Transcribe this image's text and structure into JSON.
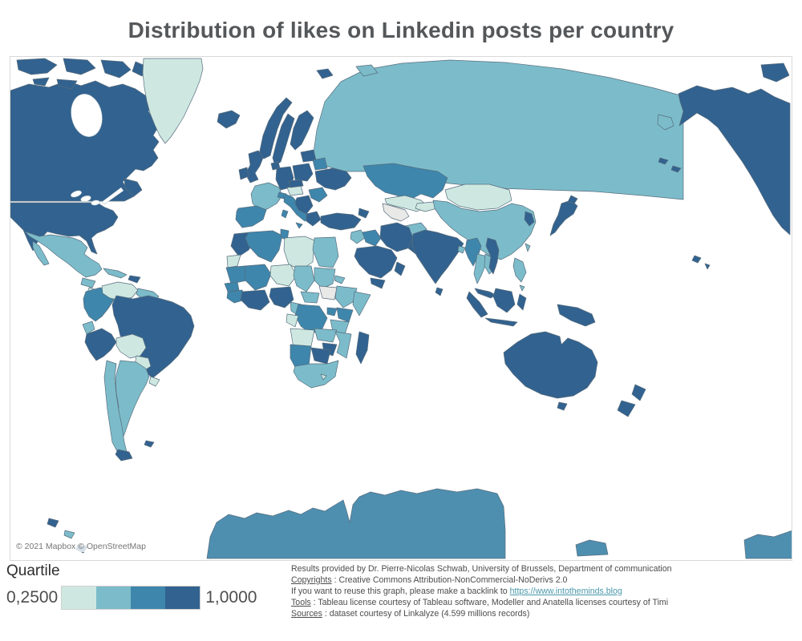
{
  "title": "Distribution of likes on Linkedin posts per country",
  "legend": {
    "title": "Quartile",
    "min_label": "0,2500",
    "max_label": "1,0000",
    "colors": [
      "#cee8e1",
      "#7cbcca",
      "#3e86ac",
      "#32628f"
    ]
  },
  "map": {
    "attribution": "© 2021 Mapbox © OpenStreetMap",
    "ocean_color": "#ffffff",
    "border_color": "#576d7e",
    "no_data_color": "#e9e9e7",
    "antarctica_color": "#4e8fb0"
  },
  "footer": {
    "line1": "Results provided by Dr. Pierre-Nicolas Schwab, University of Brussels, Department of communication",
    "line2_label": "Copyrights",
    "line2_text": " : Creative Commons Attribution-NonCommercial-NoDerivs 2.0",
    "line3_text": "If you want to reuse this graph, please make a backlink to ",
    "line3_link": "https://www.intotheminds.blog",
    "line4_label": "Tools",
    "line4_text": " : Tableau license courtesy of Tableau software, Modeller and Anatella licenses courtesy of Timi",
    "line5_label": "Sources",
    "line5_text": " : dataset courtesy of Linkalyze (4.599 millions records)"
  },
  "chart_data": {
    "type": "heatmap",
    "subtype": "choropleth-world-map",
    "title": "Distribution of likes on Linkedin posts per country",
    "legend_title": "Quartile",
    "scale": {
      "min": 0.25,
      "max": 1.0,
      "min_label": "0,2500",
      "max_label": "1,0000",
      "steps": 4
    },
    "countries": [
      {
        "id": "russia",
        "name": "Russia",
        "quartile": 2
      },
      {
        "id": "canada",
        "name": "Canada",
        "quartile": 4
      },
      {
        "id": "greenland",
        "name": "Greenland",
        "quartile": 1
      },
      {
        "id": "united-states",
        "name": "United States",
        "quartile": 4
      },
      {
        "id": "antarctica",
        "name": "Antarctica",
        "quartile": 3
      },
      {
        "id": "iceland",
        "name": "Iceland",
        "quartile": 4
      },
      {
        "id": "svalbard",
        "name": "Svalbard (Norway)",
        "quartile": 4
      },
      {
        "id": "mexico",
        "name": "Mexico",
        "quartile": 2
      },
      {
        "id": "guatemala-honduras",
        "name": "Guatemala & Honduras",
        "quartile": 2
      },
      {
        "id": "nicaragua",
        "name": "Nicaragua",
        "quartile": 1
      },
      {
        "id": "costa-rica-panama",
        "name": "Costa Rica & Panama",
        "quartile": 3
      },
      {
        "id": "cuba",
        "name": "Cuba",
        "quartile": 2
      },
      {
        "id": "hispaniola",
        "name": "Dominican Republic & Haiti",
        "quartile": 4
      },
      {
        "id": "colombia",
        "name": "Colombia",
        "quartile": 3
      },
      {
        "id": "venezuela",
        "name": "Venezuela",
        "quartile": 1
      },
      {
        "id": "guyanas",
        "name": "Guyana & Suriname",
        "quartile": 2
      },
      {
        "id": "ecuador",
        "name": "Ecuador",
        "quartile": 2
      },
      {
        "id": "peru",
        "name": "Peru",
        "quartile": 4
      },
      {
        "id": "brazil",
        "name": "Brazil",
        "quartile": 4
      },
      {
        "id": "bolivia",
        "name": "Bolivia",
        "quartile": 1
      },
      {
        "id": "paraguay",
        "name": "Paraguay",
        "quartile": 1
      },
      {
        "id": "uruguay",
        "name": "Uruguay",
        "quartile": 1
      },
      {
        "id": "argentina",
        "name": "Argentina",
        "quartile": 2
      },
      {
        "id": "chile",
        "name": "Chile",
        "quartile": 2
      },
      {
        "id": "tierra-del-fuego",
        "name": "Tierra del Fuego",
        "quartile": 4
      },
      {
        "id": "falklands",
        "name": "Falkland Islands",
        "quartile": 4
      },
      {
        "id": "south-georgia",
        "name": "South Georgia",
        "quartile": 4
      },
      {
        "id": "south-sandwich",
        "name": "South Sandwich Islands",
        "quartile": 2
      },
      {
        "id": "norway",
        "name": "Norway",
        "quartile": 4
      },
      {
        "id": "sweden",
        "name": "Sweden",
        "quartile": 4
      },
      {
        "id": "finland",
        "name": "Finland",
        "quartile": 4
      },
      {
        "id": "denmark",
        "name": "Denmark",
        "quartile": 4
      },
      {
        "id": "baltics",
        "name": "Baltic states",
        "quartile": 4
      },
      {
        "id": "uk",
        "name": "United Kingdom",
        "quartile": 4
      },
      {
        "id": "ireland",
        "name": "Ireland",
        "quartile": 4
      },
      {
        "id": "germany",
        "name": "Germany",
        "quartile": 4
      },
      {
        "id": "france",
        "name": "France",
        "quartile": 2
      },
      {
        "id": "spain",
        "name": "Spain & Portugal",
        "quartile": 3
      },
      {
        "id": "italy",
        "name": "Italy",
        "quartile": 3
      },
      {
        "id": "switzerland",
        "name": "Switzerland",
        "quartile": 3
      },
      {
        "id": "austria-hungary",
        "name": "Austria & Hungary",
        "quartile": 1
      },
      {
        "id": "czech-slovakia",
        "name": "Czechia & Slovakia",
        "quartile": 4
      },
      {
        "id": "poland",
        "name": "Poland",
        "quartile": 4
      },
      {
        "id": "belarus",
        "name": "Belarus",
        "quartile": 3
      },
      {
        "id": "ukraine",
        "name": "Ukraine",
        "quartile": 4
      },
      {
        "id": "romania",
        "name": "Romania",
        "quartile": 3
      },
      {
        "id": "balkans",
        "name": "Balkans",
        "quartile": 4
      },
      {
        "id": "greece",
        "name": "Greece",
        "quartile": 4
      },
      {
        "id": "kazakhstan",
        "name": "Kazakhstan",
        "quartile": 3
      },
      {
        "id": "uzbekistan",
        "name": "Uzbekistan",
        "quartile": 1
      },
      {
        "id": "turkmenistan",
        "name": "Turkmenistan",
        "quartile": "no data"
      },
      {
        "id": "kyrgyzstan",
        "name": "Kyrgyzstan & Tajikistan",
        "quartile": 1
      },
      {
        "id": "afghanistan",
        "name": "Afghanistan",
        "quartile": 2
      },
      {
        "id": "pakistan",
        "name": "Pakistan",
        "quartile": 4
      },
      {
        "id": "mongolia",
        "name": "Mongolia",
        "quartile": 1
      },
      {
        "id": "china",
        "name": "China",
        "quartile": 2
      },
      {
        "id": "india",
        "name": "India",
        "quartile": 4
      },
      {
        "id": "sri-lanka",
        "name": "Sri Lanka",
        "quartile": 4
      },
      {
        "id": "bangladesh",
        "name": "Bangladesh",
        "quartile": 2
      },
      {
        "id": "myanmar",
        "name": "Myanmar",
        "quartile": 3
      },
      {
        "id": "thailand",
        "name": "Thailand",
        "quartile": 2
      },
      {
        "id": "laos-cambodia",
        "name": "Laos & Cambodia",
        "quartile": 2
      },
      {
        "id": "vietnam",
        "name": "Vietnam",
        "quartile": 4
      },
      {
        "id": "malaysia",
        "name": "Malaysia",
        "quartile": 4
      },
      {
        "id": "indonesia",
        "name": "Indonesia",
        "quartile": 4
      },
      {
        "id": "philippines",
        "name": "Philippines",
        "quartile": 2
      },
      {
        "id": "taiwan",
        "name": "Taiwan",
        "quartile": 2
      },
      {
        "id": "south-korea",
        "name": "South Korea",
        "quartile": 4
      },
      {
        "id": "japan",
        "name": "Japan",
        "quartile": 4
      },
      {
        "id": "papua-new-guinea",
        "name": "Papua New Guinea",
        "quartile": 4
      },
      {
        "id": "turkey",
        "name": "Turkey",
        "quartile": 4
      },
      {
        "id": "caucasus",
        "name": "Caucasus",
        "quartile": 4
      },
      {
        "id": "levant",
        "name": "Syria & Levant",
        "quartile": 2
      },
      {
        "id": "iraq",
        "name": "Iraq",
        "quartile": 3
      },
      {
        "id": "iran",
        "name": "Iran",
        "quartile": 4
      },
      {
        "id": "saudi-arabia",
        "name": "Saudi Arabia",
        "quartile": 4
      },
      {
        "id": "yemen",
        "name": "Yemen",
        "quartile": 4
      },
      {
        "id": "oman",
        "name": "Oman",
        "quartile": 4
      },
      {
        "id": "morocco",
        "name": "Morocco",
        "quartile": 4
      },
      {
        "id": "western-sahara",
        "name": "Western Sahara",
        "quartile": 1
      },
      {
        "id": "algeria",
        "name": "Algeria",
        "quartile": 3
      },
      {
        "id": "tunisia",
        "name": "Tunisia",
        "quartile": 3
      },
      {
        "id": "libya",
        "name": "Libya",
        "quartile": 1
      },
      {
        "id": "egypt",
        "name": "Egypt",
        "quartile": 2
      },
      {
        "id": "mauritania",
        "name": "Mauritania",
        "quartile": 3
      },
      {
        "id": "mali",
        "name": "Mali",
        "quartile": 3
      },
      {
        "id": "niger",
        "name": "Niger",
        "quartile": 1
      },
      {
        "id": "chad",
        "name": "Chad",
        "quartile": 2
      },
      {
        "id": "sudan",
        "name": "Sudan",
        "quartile": 2
      },
      {
        "id": "south-sudan",
        "name": "South Sudan",
        "quartile": "no data"
      },
      {
        "id": "eritrea",
        "name": "Eritrea",
        "quartile": 2
      },
      {
        "id": "ethiopia",
        "name": "Ethiopia",
        "quartile": 2
      },
      {
        "id": "somalia",
        "name": "Somalia",
        "quartile": 2
      },
      {
        "id": "senegal",
        "name": "Senegal",
        "quartile": 3
      },
      {
        "id": "guinea",
        "name": "Guinea",
        "quartile": 3
      },
      {
        "id": "ivory-coast-ghana",
        "name": "Ivory Coast & Ghana",
        "quartile": 4
      },
      {
        "id": "nigeria",
        "name": "Nigeria",
        "quartile": 4
      },
      {
        "id": "cameroon",
        "name": "Cameroon",
        "quartile": 2
      },
      {
        "id": "central-african-republic",
        "name": "Central African Republic",
        "quartile": 2
      },
      {
        "id": "kenya",
        "name": "Kenya",
        "quartile": 3
      },
      {
        "id": "uganda",
        "name": "Uganda",
        "quartile": 3
      },
      {
        "id": "dr-congo",
        "name": "DR Congo",
        "quartile": 3
      },
      {
        "id": "gabon-congo",
        "name": "Gabon & Congo",
        "quartile": 1
      },
      {
        "id": "tanzania",
        "name": "Tanzania",
        "quartile": 2
      },
      {
        "id": "angola",
        "name": "Angola",
        "quartile": 1
      },
      {
        "id": "zambia",
        "name": "Zambia",
        "quartile": 2
      },
      {
        "id": "mozambique",
        "name": "Mozambique",
        "quartile": 2
      },
      {
        "id": "zimbabwe",
        "name": "Zimbabwe",
        "quartile": 4
      },
      {
        "id": "botswana",
        "name": "Botswana",
        "quartile": 4
      },
      {
        "id": "namibia",
        "name": "Namibia",
        "quartile": 3
      },
      {
        "id": "south-africa",
        "name": "South Africa",
        "quartile": 2
      },
      {
        "id": "lesotho",
        "name": "Lesotho",
        "quartile": 1
      },
      {
        "id": "madagascar",
        "name": "Madagascar",
        "quartile": 4
      },
      {
        "id": "australia",
        "name": "Australia",
        "quartile": 4
      },
      {
        "id": "new-zealand",
        "name": "New Zealand",
        "quartile": 4
      }
    ]
  }
}
